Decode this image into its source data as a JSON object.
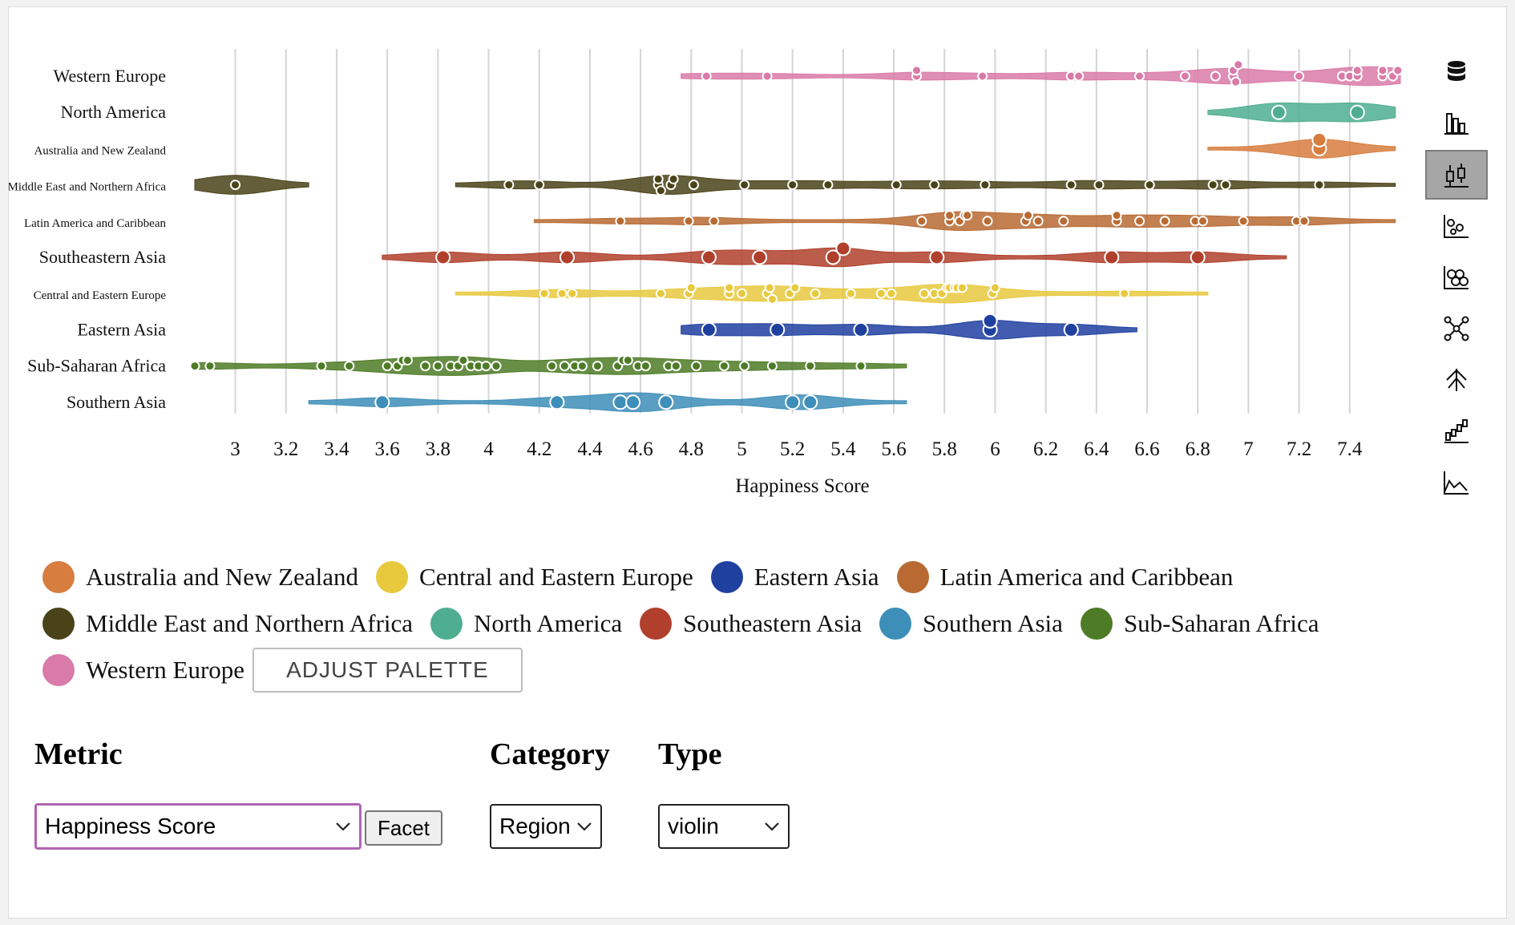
{
  "chart_data": {
    "type": "violin",
    "xlabel": "Happiness Score",
    "xlim": [
      2.84,
      7.6
    ],
    "x_ticks": [
      3,
      3.2,
      3.4,
      3.6,
      3.8,
      4,
      4.2,
      4.4,
      4.6,
      4.8,
      5,
      5.2,
      5.4,
      5.6,
      5.8,
      6,
      6.2,
      6.4,
      6.6,
      6.8,
      7,
      7.2,
      7.4
    ],
    "grid": true,
    "legend_position": "bottom",
    "categories": [
      "Western Europe",
      "North America",
      "Australia and New Zealand",
      "Middle East and Northern Africa",
      "Latin America and Caribbean",
      "Southeastern Asia",
      "Central and Eastern Europe",
      "Eastern Asia",
      "Sub-Saharan Africa",
      "Southern Asia"
    ],
    "series": [
      {
        "name": "Western Europe",
        "color": "#d97aa8",
        "range": [
          4.76,
          7.6
        ],
        "dot": "small",
        "points": [
          4.86,
          5.1,
          5.69,
          5.69,
          5.95,
          6.3,
          6.33,
          6.57,
          6.75,
          6.87,
          6.94,
          6.94,
          6.95,
          6.96,
          7.2,
          7.37,
          7.4,
          7.43,
          7.43,
          7.53,
          7.53,
          7.57,
          7.59
        ]
      },
      {
        "name": "North America",
        "color": "#4eae8f",
        "range": [
          6.84,
          7.58
        ],
        "dot": "large",
        "points": [
          7.12,
          7.43
        ]
      },
      {
        "name": "Australia and New Zealand",
        "color": "#d77d3e",
        "range": [
          6.84,
          7.58
        ],
        "dot": "large",
        "points": [
          7.28,
          7.28
        ]
      },
      {
        "name": "Middle East and Northern Africa",
        "color": "#4a4218",
        "range_low": [
          2.84,
          3.29
        ],
        "range": [
          3.87,
          7.58
        ],
        "dot": "small",
        "points": [
          3.0,
          4.08,
          4.2,
          4.67,
          4.67,
          4.68,
          4.72,
          4.73,
          4.81,
          5.01,
          5.2,
          5.34,
          5.61,
          5.76,
          5.96,
          6.3,
          6.41,
          6.61,
          6.86,
          6.91,
          7.28
        ]
      },
      {
        "name": "Latin America and Caribbean",
        "color": "#b86a32",
        "range": [
          4.18,
          7.58
        ],
        "dot": "small",
        "points": [
          4.52,
          4.79,
          4.89,
          5.71,
          5.82,
          5.82,
          5.86,
          5.88,
          5.89,
          5.97,
          6.12,
          6.13,
          6.17,
          6.27,
          6.48,
          6.48,
          6.57,
          6.67,
          6.79,
          6.82,
          6.98,
          7.19,
          7.22
        ]
      },
      {
        "name": "Southeastern Asia",
        "color": "#b03f2c",
        "range": [
          3.58,
          7.15
        ],
        "dot": "large",
        "points": [
          3.82,
          4.31,
          4.87,
          5.07,
          5.36,
          5.4,
          5.77,
          6.46,
          6.8
        ]
      },
      {
        "name": "Central and Eastern Europe",
        "color": "#e8c93e",
        "range": [
          3.87,
          6.84
        ],
        "dot": "small",
        "points": [
          4.22,
          4.29,
          4.33,
          4.68,
          4.79,
          4.8,
          4.95,
          4.95,
          5.0,
          5.1,
          5.11,
          5.12,
          5.19,
          5.21,
          5.29,
          5.43,
          5.55,
          5.59,
          5.72,
          5.76,
          5.79,
          5.81,
          5.82,
          5.84,
          5.85,
          5.87,
          5.99,
          6.0,
          6.51
        ]
      },
      {
        "name": "Eastern Asia",
        "color": "#2040a0",
        "range": [
          4.76,
          6.56
        ],
        "dot": "large",
        "points": [
          4.87,
          5.14,
          5.47,
          5.98,
          5.98,
          6.3
        ]
      },
      {
        "name": "Sub-Saharan Africa",
        "color": "#4e7b26",
        "range": [
          2.84,
          5.65
        ],
        "dot": "small",
        "points": [
          2.84,
          2.9,
          3.34,
          3.45,
          3.6,
          3.64,
          3.66,
          3.68,
          3.75,
          3.8,
          3.85,
          3.88,
          3.9,
          3.93,
          3.96,
          3.99,
          4.03,
          4.25,
          4.3,
          4.34,
          4.37,
          4.43,
          4.51,
          4.53,
          4.55,
          4.59,
          4.62,
          4.71,
          4.74,
          4.82,
          4.93,
          5.01,
          5.12,
          5.27,
          5.47
        ]
      },
      {
        "name": "Southern Asia",
        "color": "#3d8eb8",
        "range": [
          3.29,
          5.65
        ],
        "dot": "large",
        "points": [
          3.58,
          4.27,
          4.52,
          4.57,
          4.7,
          5.2,
          5.27
        ]
      }
    ]
  },
  "legend": {
    "items": [
      {
        "label": "Australia and New Zealand",
        "color": "#d77d3e"
      },
      {
        "label": "Central and Eastern Europe",
        "color": "#e8c93e"
      },
      {
        "label": "Eastern Asia",
        "color": "#2040a0"
      },
      {
        "label": "Latin America and Caribbean",
        "color": "#b86a32"
      },
      {
        "label": "Middle East and Northern Africa",
        "color": "#4a4218"
      },
      {
        "label": "North America",
        "color": "#4eae8f"
      },
      {
        "label": "Southeastern Asia",
        "color": "#b03f2c"
      },
      {
        "label": "Southern Asia",
        "color": "#3d8eb8"
      },
      {
        "label": "Sub-Saharan Africa",
        "color": "#4e7b26"
      },
      {
        "label": "Western Europe",
        "color": "#d97aa8"
      }
    ],
    "adjust_palette_label": "ADJUST PALETTE"
  },
  "toolbar": {
    "tools": [
      {
        "icon": "database-icon",
        "active": false
      },
      {
        "icon": "bar-chart-icon",
        "active": false
      },
      {
        "icon": "box-plot-icon",
        "active": true
      },
      {
        "icon": "scatter-plot-icon",
        "active": false
      },
      {
        "icon": "hexbin-icon",
        "active": false
      },
      {
        "icon": "network-icon",
        "active": false
      },
      {
        "icon": "tree-icon",
        "active": false
      },
      {
        "icon": "waterfall-icon",
        "active": false
      },
      {
        "icon": "area-chart-icon",
        "active": false
      }
    ]
  },
  "controls": {
    "metric_label": "Metric",
    "metric_value": "Happiness Score",
    "facet_label": "Facet",
    "category_label": "Category",
    "category_value": "Region",
    "type_label": "Type",
    "type_value": "violin"
  }
}
